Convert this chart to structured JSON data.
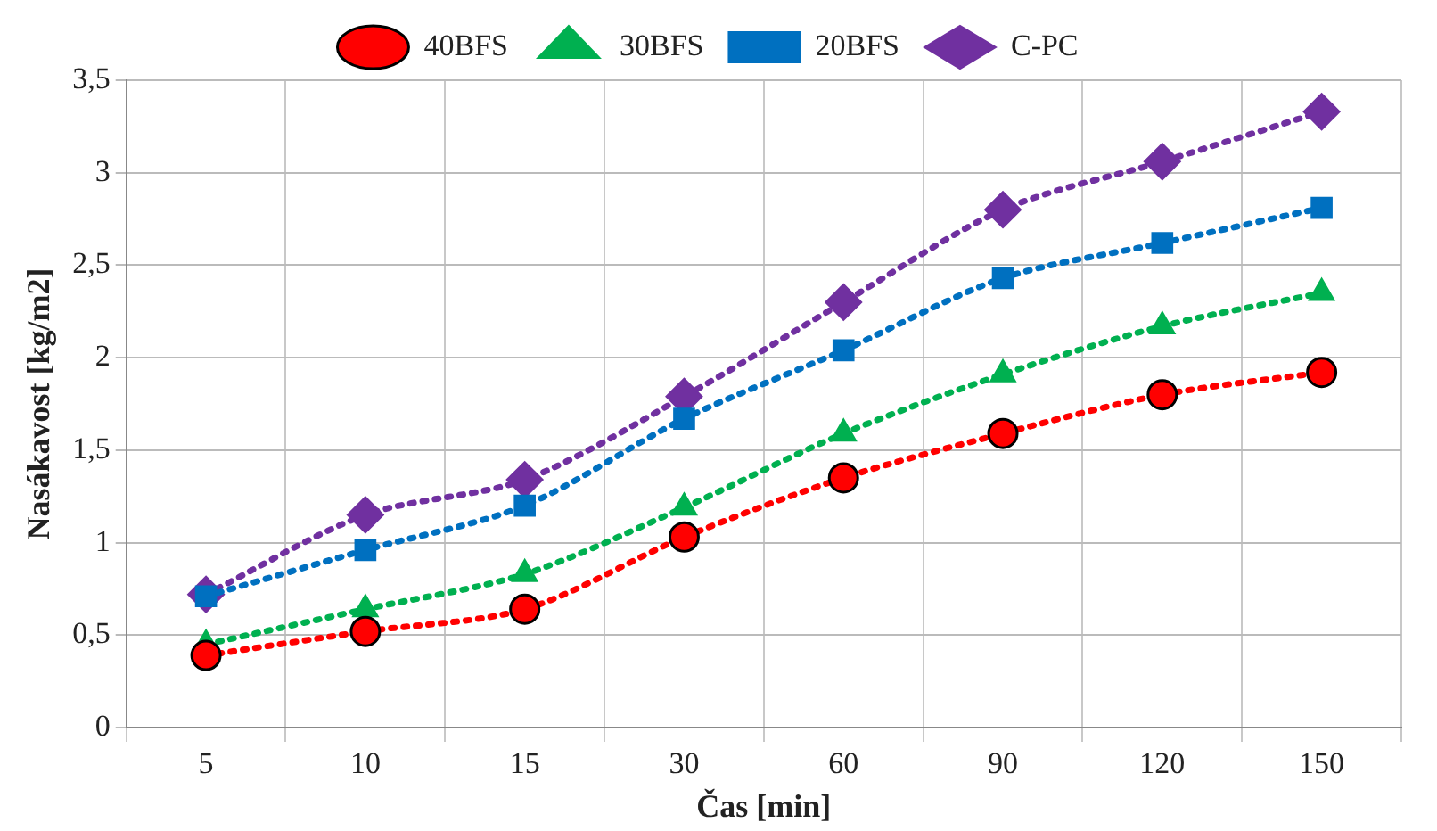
{
  "chart_data": {
    "type": "line",
    "xlabel": "Čas [min]",
    "ylabel": "Nasákavost [kg/m2]",
    "categories": [
      "5",
      "10",
      "15",
      "30",
      "60",
      "90",
      "120",
      "150"
    ],
    "ylim": [
      0,
      3.5
    ],
    "yticks": [
      0,
      {
        "value": 0.5,
        "label": "0,5"
      },
      1,
      {
        "value": 1.5,
        "label": "1,5"
      },
      2,
      {
        "value": 2.5,
        "label": "2,5"
      },
      3,
      {
        "value": 3.5,
        "label": "3,5"
      }
    ],
    "grid": true,
    "legend": "top",
    "line_style": "dotted",
    "series": [
      {
        "name": "C-PC",
        "color": "#7030a0",
        "marker": "diamond",
        "values": [
          0.72,
          1.15,
          1.34,
          1.79,
          2.3,
          2.8,
          3.06,
          3.33
        ]
      },
      {
        "name": "20BFS",
        "color": "#0070c0",
        "marker": "square",
        "values": [
          0.71,
          0.96,
          1.2,
          1.67,
          2.04,
          2.43,
          2.62,
          2.81
        ]
      },
      {
        "name": "30BFS",
        "color": "#00b050",
        "marker": "triangle",
        "values": [
          0.45,
          0.64,
          0.83,
          1.19,
          1.59,
          1.91,
          2.17,
          2.35
        ]
      },
      {
        "name": "40BFS",
        "color": "#ff0000",
        "marker": "circle",
        "values": [
          0.39,
          0.52,
          0.64,
          1.03,
          1.35,
          1.59,
          1.8,
          1.92
        ]
      }
    ]
  }
}
